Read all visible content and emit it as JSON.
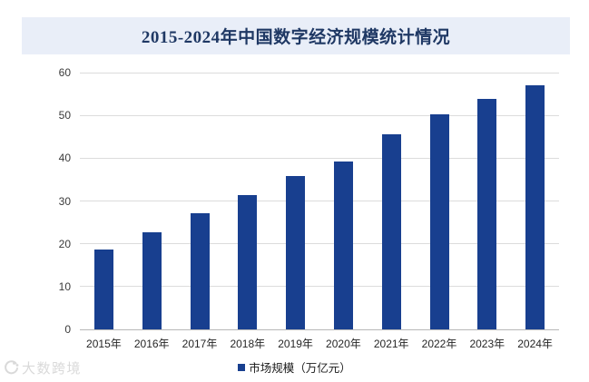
{
  "page": {
    "banner": {
      "title": "2015-2024年中国数字经济规模统计情况"
    },
    "watermark": {
      "text": "大数跨境"
    }
  },
  "colors": {
    "banner_bg": "#e9eef8",
    "banner_text": "#1f3864",
    "bar": "#183f8f",
    "gridline": "#dcdcdc",
    "axis_line": "#b8b8b8",
    "tick_text": "#3a3a3a",
    "watermark": "#d9d9d9"
  },
  "chart_data": {
    "type": "bar",
    "title": "2015-2024年中国数字经济规模统计情况",
    "categories": [
      "2015年",
      "2016年",
      "2017年",
      "2018年",
      "2019年",
      "2020年",
      "2021年",
      "2022年",
      "2023年",
      "2024年"
    ],
    "series": [
      {
        "name": "市场规模（万亿元）",
        "values": [
          18.6,
          22.6,
          27.2,
          31.3,
          35.8,
          39.2,
          45.5,
          50.2,
          53.9,
          57.0
        ]
      }
    ],
    "xlabel": "",
    "ylabel": "",
    "ylim": [
      0,
      60
    ],
    "ytick_step": 10,
    "grid": true,
    "legend_position": "bottom"
  }
}
